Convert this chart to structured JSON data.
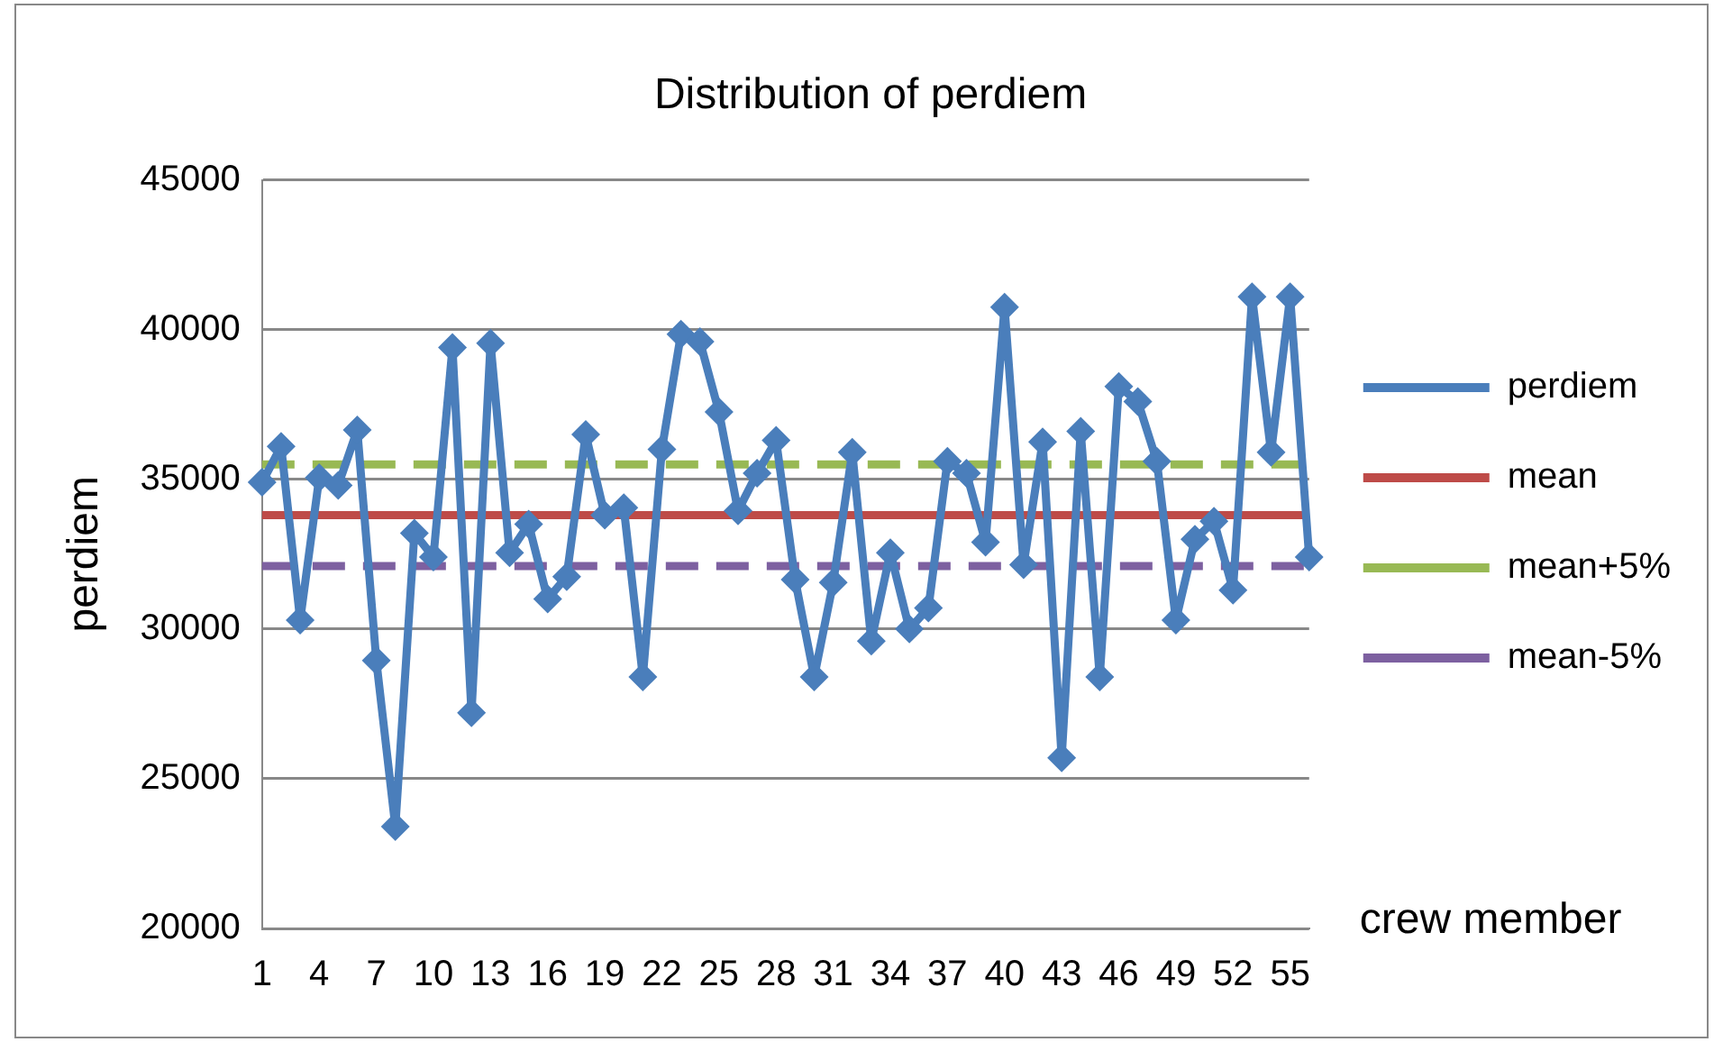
{
  "chart_data": {
    "type": "line",
    "title": "Distribution of perdiem",
    "xlabel": "crew member",
    "ylabel": "perdiem",
    "categories": [
      "1",
      null,
      null,
      "4",
      null,
      null,
      "7",
      null,
      null,
      "10",
      null,
      null,
      "13",
      null,
      null,
      "16",
      null,
      null,
      "19",
      null,
      null,
      "22",
      null,
      null,
      "25",
      null,
      null,
      "28",
      null,
      null,
      "31",
      null,
      null,
      "34",
      null,
      null,
      "37",
      null,
      null,
      "40",
      null,
      null,
      "43",
      null,
      null,
      "46",
      null,
      null,
      "49",
      null,
      null,
      "52",
      null,
      null,
      "55",
      null
    ],
    "ylim": [
      20000,
      45000
    ],
    "yticks": [
      20000,
      25000,
      30000,
      35000,
      40000,
      45000
    ],
    "grid": "y",
    "legend": "right",
    "series": [
      {
        "name": "perdiem",
        "color": "#4a7ebb",
        "marker": "diamond",
        "line_style": "solid",
        "values": [
          34900,
          36100,
          30300,
          35050,
          34800,
          36650,
          28950,
          23400,
          33200,
          32400,
          39400,
          27200,
          39550,
          32550,
          33500,
          31000,
          31750,
          36500,
          33800,
          34050,
          28400,
          36000,
          39850,
          39600,
          37250,
          33950,
          35200,
          36300,
          31650,
          28400,
          31550,
          35900,
          29600,
          32550,
          30000,
          30700,
          35600,
          35200,
          32900,
          40750,
          32150,
          36250,
          25700,
          36600,
          28400,
          38100,
          37600,
          35600,
          30300,
          33000,
          33600,
          31300,
          41100,
          35900,
          41100,
          32400
        ]
      },
      {
        "name": "mean",
        "color": "#be4b48",
        "marker": "none",
        "line_style": "solid",
        "values": [
          33800,
          33800,
          33800,
          33800,
          33800,
          33800,
          33800,
          33800,
          33800,
          33800,
          33800,
          33800,
          33800,
          33800,
          33800,
          33800,
          33800,
          33800,
          33800,
          33800,
          33800,
          33800,
          33800,
          33800,
          33800,
          33800,
          33800,
          33800,
          33800,
          33800,
          33800,
          33800,
          33800,
          33800,
          33800,
          33800,
          33800,
          33800,
          33800,
          33800,
          33800,
          33800,
          33800,
          33800,
          33800,
          33800,
          33800,
          33800,
          33800,
          33800,
          33800,
          33800,
          33800,
          33800,
          33800,
          33800
        ]
      },
      {
        "name": "mean+5%",
        "color": "#98b954",
        "marker": "none",
        "line_style": "dashed",
        "values": [
          35500,
          35500,
          35500,
          35500,
          35500,
          35500,
          35500,
          35500,
          35500,
          35500,
          35500,
          35500,
          35500,
          35500,
          35500,
          35500,
          35500,
          35500,
          35500,
          35500,
          35500,
          35500,
          35500,
          35500,
          35500,
          35500,
          35500,
          35500,
          35500,
          35500,
          35500,
          35500,
          35500,
          35500,
          35500,
          35500,
          35500,
          35500,
          35500,
          35500,
          35500,
          35500,
          35500,
          35500,
          35500,
          35500,
          35500,
          35500,
          35500,
          35500,
          35500,
          35500,
          35500,
          35500,
          35500,
          35500
        ]
      },
      {
        "name": "mean-5%",
        "color": "#7d60a0",
        "marker": "none",
        "line_style": "dashed",
        "values": [
          32100,
          32100,
          32100,
          32100,
          32100,
          32100,
          32100,
          32100,
          32100,
          32100,
          32100,
          32100,
          32100,
          32100,
          32100,
          32100,
          32100,
          32100,
          32100,
          32100,
          32100,
          32100,
          32100,
          32100,
          32100,
          32100,
          32100,
          32100,
          32100,
          32100,
          32100,
          32100,
          32100,
          32100,
          32100,
          32100,
          32100,
          32100,
          32100,
          32100,
          32100,
          32100,
          32100,
          32100,
          32100,
          32100,
          32100,
          32100,
          32100,
          32100,
          32100,
          32100,
          32100,
          32100,
          32100,
          32100
        ]
      }
    ]
  }
}
